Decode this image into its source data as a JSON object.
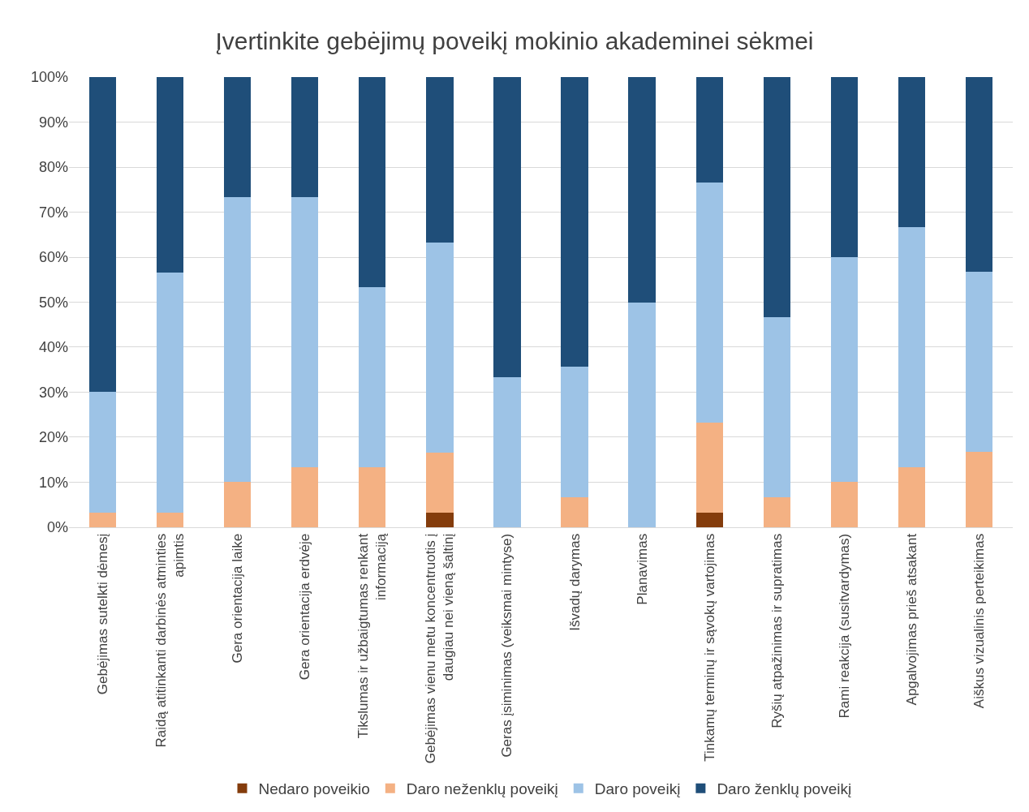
{
  "chart_data": {
    "type": "bar",
    "title": "Įvertinkite gebėjimų poveikį mokinio akademinei sėkmei",
    "stacked": true,
    "categories": [
      "Gebėjimas sutelkti dėmesį",
      "Raidą atitinkanti darbinės atminties apimtis",
      "Gera orientacija laike",
      "Gera orientacija erdvėje",
      "Tikslumas ir užbaigtumas renkant informaciją",
      "Gebėjimas vienu metu koncentruotis į daugiau nei vieną šaltinį",
      "Geras įsiminimas (veiksmai mintyse)",
      "Išvadų darymas",
      "Planavimas",
      "Tinkamų terminų ir sąvokų vartojimas",
      "Ryšių atpažinimas ir supratimas",
      "Rami reakcija (susitvardymas)",
      "Apgalvojimas prieš atsakant",
      "Aiškus vizualinis perteikimas"
    ],
    "series": [
      {
        "name": "Nedaro poveikio",
        "color": "#843c0c",
        "values": [
          0,
          0,
          0,
          0,
          0,
          3.3,
          0,
          0,
          0,
          3.3,
          0,
          0,
          0,
          0
        ]
      },
      {
        "name": "Daro neženklų poveikį",
        "color": "#f4b183",
        "values": [
          3.3,
          3.3,
          10,
          13.3,
          13.3,
          13.3,
          0,
          6.7,
          0,
          20,
          6.7,
          10,
          13.3,
          16.7
        ]
      },
      {
        "name": "Daro poveikį",
        "color": "#9dc3e6",
        "values": [
          26.7,
          53.3,
          63.3,
          60,
          40,
          46.7,
          33.3,
          29,
          50,
          53.3,
          40,
          50,
          53.3,
          40
        ]
      },
      {
        "name": "Daro ženklų poveikį",
        "color": "#1f4e79",
        "values": [
          70,
          43.4,
          26.7,
          26.7,
          46.7,
          36.7,
          66.7,
          64.3,
          50,
          23.4,
          53.3,
          40,
          33.4,
          43.3
        ]
      }
    ],
    "ylim": [
      0,
      100
    ],
    "yticks": [
      {
        "value": 0,
        "label": "0%"
      },
      {
        "value": 10,
        "label": "10%"
      },
      {
        "value": 20,
        "label": "20%"
      },
      {
        "value": 30,
        "label": "30%"
      },
      {
        "value": 40,
        "label": "40%"
      },
      {
        "value": 50,
        "label": "50%"
      },
      {
        "value": 60,
        "label": "60%"
      },
      {
        "value": 70,
        "label": "70%"
      },
      {
        "value": 80,
        "label": "80%"
      },
      {
        "value": 90,
        "label": "90%"
      },
      {
        "value": 100,
        "label": "100%"
      }
    ],
    "grid": "y",
    "legend": "bottom"
  }
}
